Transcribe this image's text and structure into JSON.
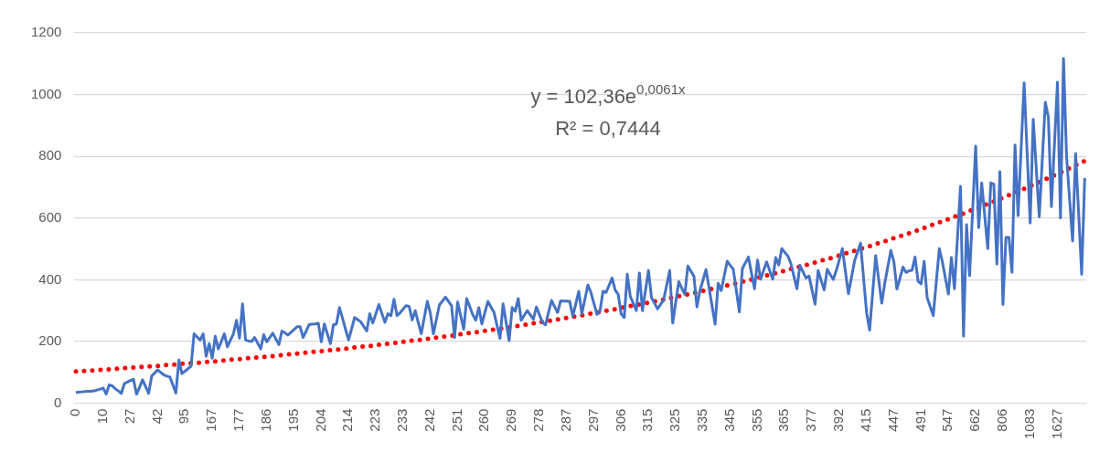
{
  "chart_data": {
    "type": "line",
    "categories": [
      "0",
      null,
      null,
      null,
      null,
      null,
      null,
      null,
      null,
      "10",
      null,
      null,
      null,
      null,
      null,
      null,
      null,
      null,
      "27",
      null,
      null,
      null,
      null,
      null,
      null,
      null,
      null,
      "42",
      null,
      null,
      null,
      null,
      null,
      null,
      null,
      null,
      "95",
      null,
      null,
      null,
      null,
      null,
      null,
      null,
      null,
      "167",
      null,
      null,
      null,
      null,
      null,
      null,
      null,
      null,
      "177",
      null,
      null,
      null,
      null,
      null,
      null,
      null,
      null,
      "186",
      null,
      null,
      null,
      null,
      null,
      null,
      null,
      null,
      "195",
      null,
      null,
      null,
      null,
      null,
      null,
      null,
      null,
      "204",
      null,
      null,
      null,
      null,
      null,
      null,
      null,
      null,
      "214",
      null,
      null,
      null,
      null,
      null,
      null,
      null,
      null,
      "223",
      null,
      null,
      null,
      null,
      null,
      null,
      null,
      null,
      "233",
      null,
      null,
      null,
      null,
      null,
      null,
      null,
      null,
      "242",
      null,
      null,
      null,
      null,
      null,
      null,
      null,
      null,
      "251",
      null,
      null,
      null,
      null,
      null,
      null,
      null,
      null,
      "260",
      null,
      null,
      null,
      null,
      null,
      null,
      null,
      null,
      "269",
      null,
      null,
      null,
      null,
      null,
      null,
      null,
      null,
      "278",
      null,
      null,
      null,
      null,
      null,
      null,
      null,
      null,
      "287",
      null,
      null,
      null,
      null,
      null,
      null,
      null,
      null,
      "297",
      null,
      null,
      null,
      null,
      null,
      null,
      null,
      null,
      "306",
      null,
      null,
      null,
      null,
      null,
      null,
      null,
      null,
      "315",
      null,
      null,
      null,
      null,
      null,
      null,
      null,
      null,
      "325",
      null,
      null,
      null,
      null,
      null,
      null,
      null,
      null,
      "335",
      null,
      null,
      null,
      null,
      null,
      null,
      null,
      null,
      "345",
      null,
      null,
      null,
      null,
      null,
      null,
      null,
      null,
      "355",
      null,
      null,
      null,
      null,
      null,
      null,
      null,
      null,
      "365",
      null,
      null,
      null,
      null,
      null,
      null,
      null,
      null,
      "377",
      null,
      null,
      null,
      null,
      null,
      null,
      null,
      null,
      "392",
      null,
      null,
      null,
      null,
      null,
      null,
      null,
      null,
      "415",
      null,
      null,
      null,
      null,
      null,
      null,
      null,
      null,
      "447",
      null,
      null,
      null,
      null,
      null,
      null,
      null,
      null,
      "491",
      null,
      null,
      null,
      null,
      null,
      null,
      null,
      null,
      "547",
      null,
      null,
      null,
      null,
      null,
      null,
      null,
      null,
      "662",
      null,
      null,
      null,
      null,
      null,
      null,
      null,
      null,
      "806",
      null,
      null,
      null,
      null,
      null,
      null,
      null,
      null,
      "1083",
      null,
      null,
      null,
      null,
      null,
      null,
      null,
      null,
      "1627",
      null,
      null,
      null,
      null,
      null,
      null,
      null,
      null,
      null
    ],
    "ylim": [
      0,
      1200
    ],
    "yticks": [
      0,
      200,
      400,
      600,
      800,
      1000,
      1200
    ],
    "grid": "y",
    "legend": false,
    "marker": "none",
    "annotations": [
      "y = 102,36e$^{0,0061x}$",
      "R² = 0,7444"
    ],
    "series": [
      {
        "color": "#4472c4",
        "values": [
          35,
          36,
          37,
          38,
          39,
          39,
          40,
          43,
          46,
          49,
          30,
          60,
          56,
          47,
          40,
          32,
          64,
          69,
          74,
          78,
          29,
          52,
          76,
          54,
          32,
          88,
          98,
          108,
          100,
          92,
          88,
          85,
          60,
          33,
          140,
          96,
          104,
          112,
          120,
          225,
          215,
          205,
          225,
          152,
          193,
          146,
          217,
          176,
          200,
          225,
          183,
          204,
          225,
          269,
          211,
          322,
          205,
          202,
          200,
          213,
          195,
          176,
          222,
          199,
          213,
          227,
          208,
          190,
          234,
          228,
          221,
          230,
          239,
          248,
          248,
          213,
          234,
          255,
          256,
          257,
          259,
          199,
          257,
          225,
          193,
          254,
          257,
          310,
          275,
          240,
          205,
          241,
          278,
          271,
          264,
          249,
          234,
          290,
          260,
          290,
          320,
          291,
          262,
          290,
          284,
          337,
          284,
          293,
          305,
          316,
          314,
          270,
          300,
          262,
          225,
          278,
          330,
          292,
          225,
          272,
          319,
          331,
          344,
          330,
          316,
          213,
          328,
          284,
          240,
          339,
          313,
          287,
          269,
          310,
          257,
          294,
          330,
          312,
          295,
          252,
          210,
          322,
          262,
          203,
          310,
          298,
          339,
          269,
          285,
          300,
          286,
          272,
          312,
          287,
          262,
          254,
          294,
          333,
          313,
          294,
          332,
          331,
          331,
          330,
          282,
          322,
          363,
          290,
          336,
          383,
          359,
          323,
          288,
          300,
          363,
          359,
          382,
          406,
          367,
          353,
          289,
          278,
          418,
          346,
          323,
          300,
          422,
          300,
          365,
          430,
          342,
          324,
          306,
          320,
          335,
          382,
          430,
          260,
          327,
          394,
          373,
          353,
          445,
          428,
          412,
          312,
          365,
          399,
          433,
          374,
          315,
          256,
          389,
          365,
          412,
          460,
          447,
          434,
          365,
          296,
          437,
          455,
          474,
          422,
          371,
          464,
          402,
          430,
          458,
          430,
          402,
          472,
          448,
          501,
          489,
          477,
          453,
          412,
          371,
          447,
          426,
          406,
          412,
          366,
          321,
          430,
          398,
          367,
          434,
          417,
          401,
          430,
          465,
          501,
          428,
          355,
          407,
          460,
          489,
          519,
          406,
          294,
          237,
          357,
          478,
          401,
          324,
          389,
          442,
          495,
          459,
          370,
          405,
          441,
          424,
          429,
          431,
          474,
          395,
          387,
          460,
          342,
          313,
          284,
          392,
          501,
          459,
          406,
          354,
          472,
          371,
          537,
          703,
          217,
          579,
          413,
          623,
          833,
          569,
          714,
          607,
          501,
          714,
          710,
          451,
          750,
          320,
          537,
          537,
          424,
          837,
          608,
          823,
          1038,
          811,
          584,
          920,
          762,
          604,
          790,
          975,
          927,
          637,
          838,
          1040,
          600,
          1117,
          800,
          663,
          526,
          809,
          614,
          418,
          730
        ]
      },
      {
        "color": "#ff0000",
        "line_style": "dotted",
        "values": [
          103,
          104,
          104,
          105,
          106,
          106,
          107,
          108,
          108,
          109,
          110,
          110,
          111,
          112,
          112,
          113,
          114,
          114,
          115,
          116,
          116,
          117,
          118,
          119,
          119,
          120,
          121,
          121,
          122,
          123,
          124,
          124,
          125,
          126,
          127,
          128,
          128,
          129,
          130,
          131,
          131,
          132,
          133,
          134,
          135,
          136,
          136,
          137,
          138,
          139,
          140,
          141,
          142,
          142,
          143,
          144,
          145,
          146,
          147,
          148,
          149,
          149,
          150,
          151,
          152,
          153,
          154,
          155,
          156,
          157,
          158,
          159,
          160,
          161,
          162,
          163,
          164,
          165,
          166,
          167,
          168,
          169,
          170,
          171,
          172,
          173,
          174,
          175,
          176,
          177,
          178,
          179,
          181,
          182,
          183,
          184,
          185,
          186,
          187,
          188,
          190,
          191,
          192,
          193,
          194,
          195,
          197,
          198,
          199,
          200,
          202,
          203,
          204,
          205,
          206,
          208,
          209,
          210,
          212,
          213,
          214,
          215,
          217,
          218,
          219,
          221,
          222,
          224,
          225,
          226,
          228,
          229,
          230,
          232,
          233,
          235,
          236,
          238,
          239,
          241,
          242,
          243,
          245,
          246,
          248,
          249,
          251,
          253,
          254,
          256,
          257,
          259,
          260,
          262,
          264,
          265,
          267,
          268,
          270,
          272,
          273,
          275,
          277,
          278,
          280,
          282,
          284,
          285,
          287,
          289,
          291,
          292,
          294,
          296,
          298,
          300,
          301,
          303,
          305,
          307,
          309,
          311,
          313,
          315,
          316,
          318,
          320,
          322,
          324,
          326,
          328,
          330,
          332,
          334,
          336,
          338,
          340,
          343,
          345,
          347,
          349,
          351,
          353,
          355,
          357,
          360,
          362,
          364,
          366,
          369,
          371,
          373,
          375,
          378,
          380,
          382,
          385,
          387,
          389,
          392,
          394,
          397,
          399,
          401,
          404,
          406,
          409,
          411,
          414,
          416,
          419,
          422,
          424,
          427,
          429,
          432,
          435,
          437,
          440,
          443,
          445,
          448,
          451,
          454,
          456,
          459,
          462,
          465,
          468,
          470,
          473,
          476,
          479,
          482,
          485,
          488,
          491,
          494,
          497,
          500,
          503,
          506,
          509,
          512,
          516,
          519,
          522,
          525,
          528,
          532,
          535,
          538,
          541,
          545,
          548,
          551,
          555,
          558,
          561,
          565,
          568,
          572,
          575,
          579,
          582,
          586,
          590,
          593,
          597,
          600,
          604,
          608,
          611,
          615,
          619,
          623,
          627,
          630,
          634,
          638,
          642,
          646,
          650,
          654,
          658,
          662,
          666,
          670,
          674,
          678,
          682,
          687,
          691,
          695,
          699,
          704,
          708,
          712,
          717,
          721,
          725,
          730,
          734,
          739,
          743,
          748,
          752,
          757,
          762,
          766,
          771,
          776,
          780,
          785
        ]
      }
    ]
  }
}
